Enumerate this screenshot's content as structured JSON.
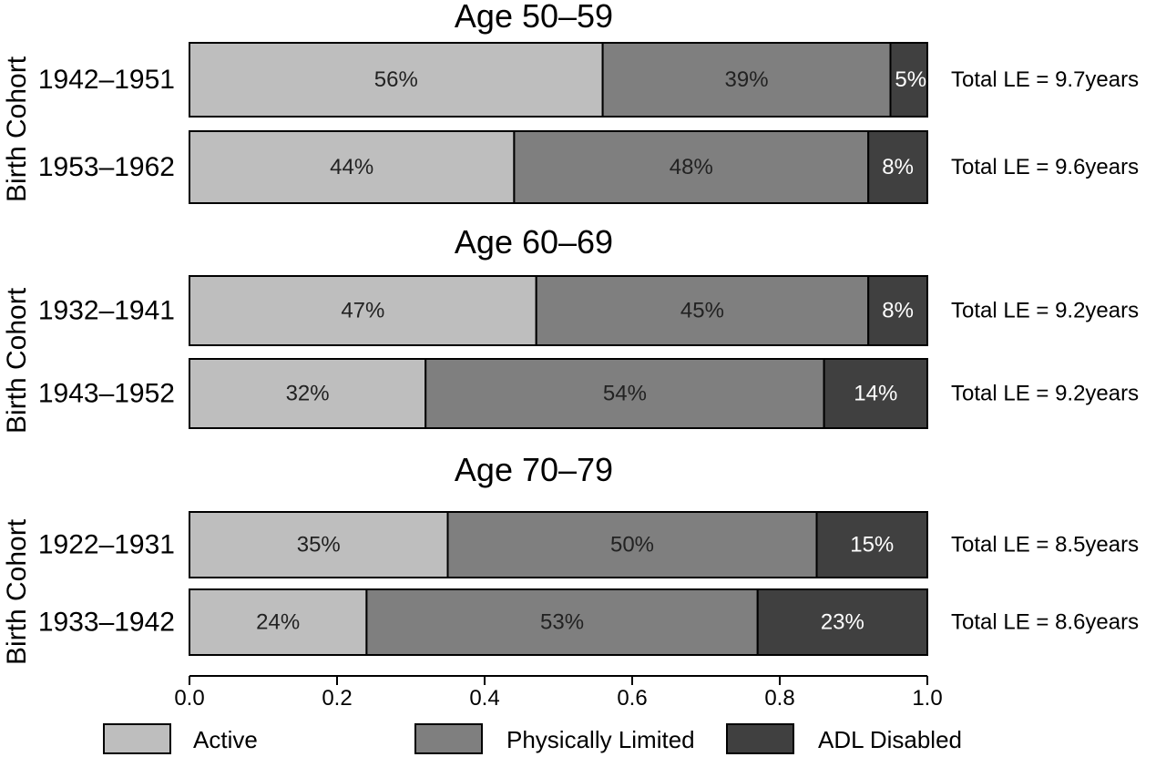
{
  "chart_data": {
    "type": "bar",
    "orientation": "horizontal",
    "stacked": true,
    "xlim": [
      0,
      1
    ],
    "x_ticks": [
      "0.0",
      "0.2",
      "0.4",
      "0.6",
      "0.8",
      "1.0"
    ],
    "ylabel": "Birth Cohort",
    "series_names": [
      "Active",
      "Physically Limited",
      "ADL Disabled"
    ],
    "colors": [
      "#bebebe",
      "#7f7f7f",
      "#404040"
    ],
    "label_colors": [
      "#222222",
      "#222222",
      "#ffffff"
    ],
    "legend_position": "bottom",
    "panels": [
      {
        "title": "Age 50–59",
        "rows": [
          {
            "cohort": "1942–1951",
            "values": [
              0.56,
              0.39,
              0.05
            ],
            "labels": [
              "56%",
              "39%",
              "5%"
            ],
            "total": "Total LE = 9.7years"
          },
          {
            "cohort": "1953–1962",
            "values": [
              0.44,
              0.48,
              0.08
            ],
            "labels": [
              "44%",
              "48%",
              "8%"
            ],
            "total": "Total LE = 9.6years"
          }
        ]
      },
      {
        "title": "Age 60–69",
        "rows": [
          {
            "cohort": "1932–1941",
            "values": [
              0.47,
              0.45,
              0.08
            ],
            "labels": [
              "47%",
              "45%",
              "8%"
            ],
            "total": "Total LE = 9.2years"
          },
          {
            "cohort": "1943–1952",
            "values": [
              0.32,
              0.54,
              0.14
            ],
            "labels": [
              "32%",
              "54%",
              "14%"
            ],
            "total": "Total LE = 9.2years"
          }
        ]
      },
      {
        "title": "Age 70–79",
        "rows": [
          {
            "cohort": "1922–1931",
            "values": [
              0.35,
              0.5,
              0.15
            ],
            "labels": [
              "35%",
              "50%",
              "15%"
            ],
            "total": "Total LE = 8.5years"
          },
          {
            "cohort": "1933–1942",
            "values": [
              0.24,
              0.53,
              0.23
            ],
            "labels": [
              "24%",
              "53%",
              "23%"
            ],
            "total": "Total LE = 8.6years"
          }
        ]
      }
    ]
  }
}
